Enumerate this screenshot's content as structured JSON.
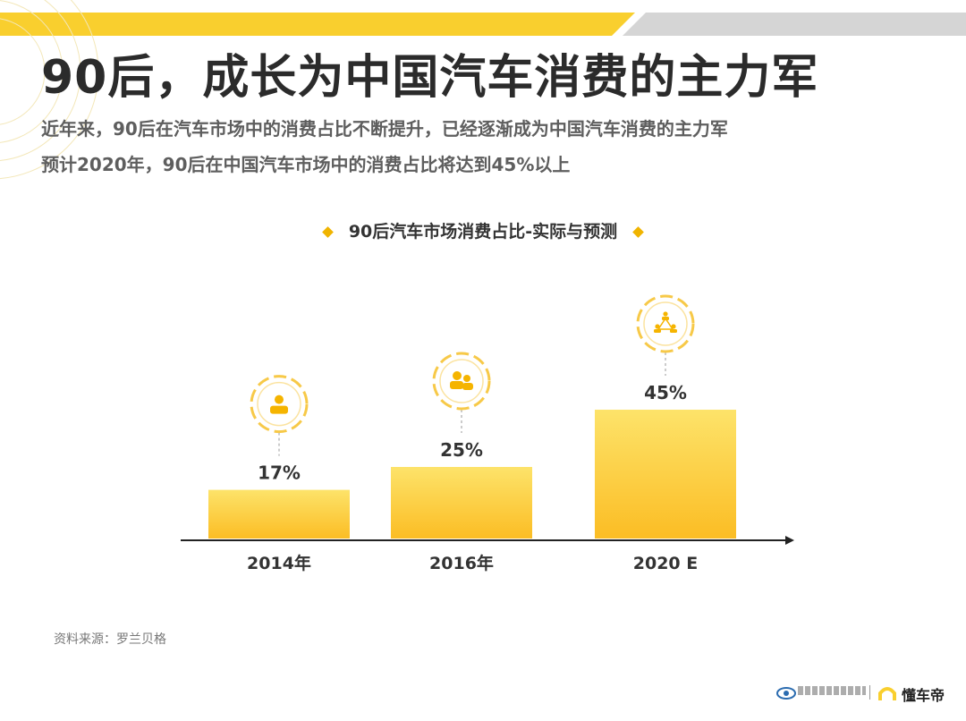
{
  "header": {
    "title": "90后，成长为中国汽车消费的主力军",
    "subtitle_lines": [
      "近年来，90后在汽车市场中的消费占比不断提升，已经逐渐成为中国汽车消费的主力军",
      "预计2020年，90后在中国汽车市场中的消费占比将达到45%以上"
    ]
  },
  "colors": {
    "accent": "#f9cf2e",
    "bar": "#fbc02d",
    "bar_light": "#fde36a",
    "text": "#2b2b2b"
  },
  "chart_data": {
    "type": "bar",
    "title": "90后汽车市场消费占比-实际与预测",
    "categories": [
      "2014年",
      "2016年",
      "2020 E"
    ],
    "values": [
      17,
      25,
      45
    ],
    "value_labels": [
      "17%",
      "25%",
      "45%"
    ],
    "icons": [
      "single-person-icon",
      "two-persons-icon",
      "group-network-icon"
    ],
    "unit": "%",
    "ylim": [
      0,
      50
    ],
    "xlabel": "",
    "ylabel": "",
    "grid": false,
    "legend": "none"
  },
  "source_note": "资料来源：罗兰贝格",
  "footer": {
    "app_name": "懂车帝"
  }
}
